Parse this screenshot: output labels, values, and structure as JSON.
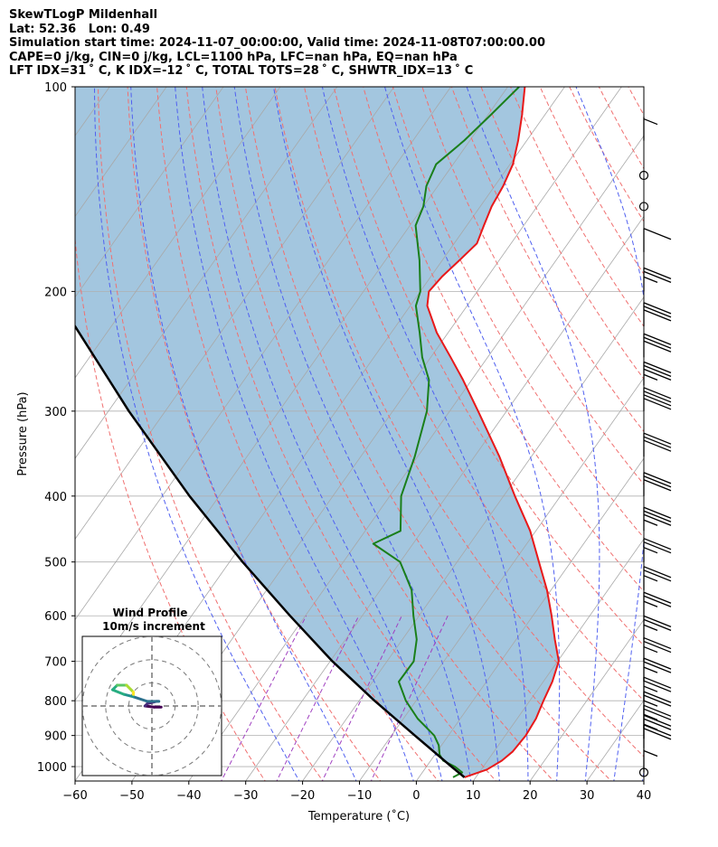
{
  "header": {
    "line1": "SkewTLogP Mildenhall",
    "line2": "Lat: 52.36   Lon: 0.49",
    "line3": "Simulation start time: 2024-11-07_00:00:00, Valid time: 2024-11-08T07:00:00.00",
    "line4": "CAPE=0 j/kg, CIN=0 j/kg, LCL=1100 hPa, LFC=nan hPa, EQ=nan hPa",
    "line5": "LFT IDX=31 ˚ C, K IDX=-12 ˚ C, TOTAL TOTS=28 ˚ C, SHWTR_IDX=13 ˚ C"
  },
  "chart_data": {
    "type": "line",
    "subtype": "skew-T log-p",
    "xlabel": "Temperature (˚C)",
    "ylabel": "Pressure (hPa)",
    "xlim": [
      -60,
      40
    ],
    "ylim": [
      1050,
      100
    ],
    "y_scale": "log",
    "x_ticks": [
      -60,
      -50,
      -40,
      -30,
      -20,
      -10,
      0,
      10,
      20,
      30,
      40
    ],
    "y_ticks": [
      100,
      200,
      300,
      400,
      500,
      600,
      700,
      800,
      900,
      1000
    ],
    "grid": true,
    "colors": {
      "temperature": "#e8191a",
      "dewpoint": "#1a7f1a",
      "parcel": "#000000",
      "shading": "#a3c6df",
      "dry_adiabats": "#f07070",
      "moist_adiabats": "#5060f0",
      "mixing_ratio": "#a040c0",
      "isotherms": "#a8a8a8",
      "grid": "#b0b0b0"
    },
    "series": [
      {
        "key": "temperature",
        "points": [
          [
            1037,
            8.0
          ],
          [
            1010,
            11.0
          ],
          [
            980,
            12.5
          ],
          [
            950,
            13.3
          ],
          [
            900,
            13.6
          ],
          [
            850,
            13.3
          ],
          [
            800,
            12.4
          ],
          [
            750,
            11.6
          ],
          [
            700,
            10.2
          ],
          [
            650,
            6.8
          ],
          [
            600,
            3.3
          ],
          [
            550,
            -0.7
          ],
          [
            500,
            -5.6
          ],
          [
            450,
            -11.0
          ],
          [
            400,
            -18.0
          ],
          [
            350,
            -25.6
          ],
          [
            300,
            -35.0
          ],
          [
            270,
            -41.5
          ],
          [
            250,
            -46.5
          ],
          [
            230,
            -52.0
          ],
          [
            210,
            -57.0
          ],
          [
            200,
            -58.5
          ],
          [
            190,
            -58.0
          ],
          [
            180,
            -57.0
          ],
          [
            170,
            -56.0
          ],
          [
            160,
            -57.0
          ],
          [
            150,
            -58.0
          ],
          [
            140,
            -58.5
          ],
          [
            130,
            -59.5
          ],
          [
            120,
            -61.5
          ],
          [
            110,
            -64.0
          ],
          [
            100,
            -67.0
          ]
        ]
      },
      {
        "key": "dewpoint",
        "points": [
          [
            1037,
            6.0
          ],
          [
            1020,
            7.0
          ],
          [
            1000,
            5.0
          ],
          [
            980,
            2.2
          ],
          [
            960,
            0.8
          ],
          [
            930,
            -0.5
          ],
          [
            900,
            -2.5
          ],
          [
            850,
            -7.5
          ],
          [
            800,
            -11.8
          ],
          [
            750,
            -15.4
          ],
          [
            700,
            -15.3
          ],
          [
            650,
            -17.5
          ],
          [
            600,
            -21.0
          ],
          [
            550,
            -24.5
          ],
          [
            500,
            -30.0
          ],
          [
            470,
            -37.0
          ],
          [
            450,
            -33.8
          ],
          [
            400,
            -38.0
          ],
          [
            350,
            -40.5
          ],
          [
            300,
            -44.0
          ],
          [
            270,
            -47.5
          ],
          [
            250,
            -51.5
          ],
          [
            230,
            -55.0
          ],
          [
            210,
            -59.0
          ],
          [
            200,
            -60.0
          ],
          [
            180,
            -64.0
          ],
          [
            160,
            -69.0
          ],
          [
            150,
            -70.0
          ],
          [
            140,
            -72.0
          ],
          [
            130,
            -73.0
          ],
          [
            120,
            -71.0
          ],
          [
            110,
            -69.5
          ],
          [
            100,
            -68.0
          ]
        ]
      },
      {
        "key": "parcel",
        "points": [
          [
            1037,
            8.0
          ],
          [
            1000,
            4.4
          ],
          [
            900,
            -5.9
          ],
          [
            800,
            -17.3
          ],
          [
            700,
            -29.6
          ],
          [
            600,
            -42.7
          ],
          [
            500,
            -57.7
          ],
          [
            400,
            -75.2
          ],
          [
            300,
            -96.4
          ],
          [
            200,
            -124.6
          ],
          [
            100,
            -164.5
          ]
        ]
      }
    ],
    "wind_barbs": {
      "pressures": [
        1020,
        940,
        910,
        880,
        840,
        800,
        750,
        700,
        650,
        600,
        550,
        500,
        450,
        400,
        350,
        300,
        275,
        250,
        225,
        200,
        175,
        150,
        135,
        120
      ],
      "speed_kt": [
        5,
        20,
        25,
        25,
        25,
        25,
        25,
        25,
        25,
        25,
        25,
        25,
        35,
        30,
        30,
        40,
        35,
        30,
        30,
        25,
        10,
        0,
        0,
        5
      ],
      "calm_markers_at": [
        1020,
        150,
        135
      ]
    },
    "wind_profile": {
      "title": "Wind Profile",
      "subtitle": "10m/s increment",
      "rings_ms": [
        10,
        20,
        30
      ],
      "hodograph_uv": [
        [
          4,
          -0.5
        ],
        [
          1,
          -0.5
        ],
        [
          -3,
          0
        ],
        [
          -2,
          1
        ],
        [
          2,
          2
        ],
        [
          3,
          2
        ],
        [
          -2,
          2
        ],
        [
          -8,
          4
        ],
        [
          -12,
          5
        ],
        [
          -17,
          7
        ],
        [
          -15,
          9
        ],
        [
          -11,
          9
        ],
        [
          -9,
          7
        ],
        [
          -8,
          6
        ],
        [
          -8,
          5
        ]
      ]
    }
  }
}
